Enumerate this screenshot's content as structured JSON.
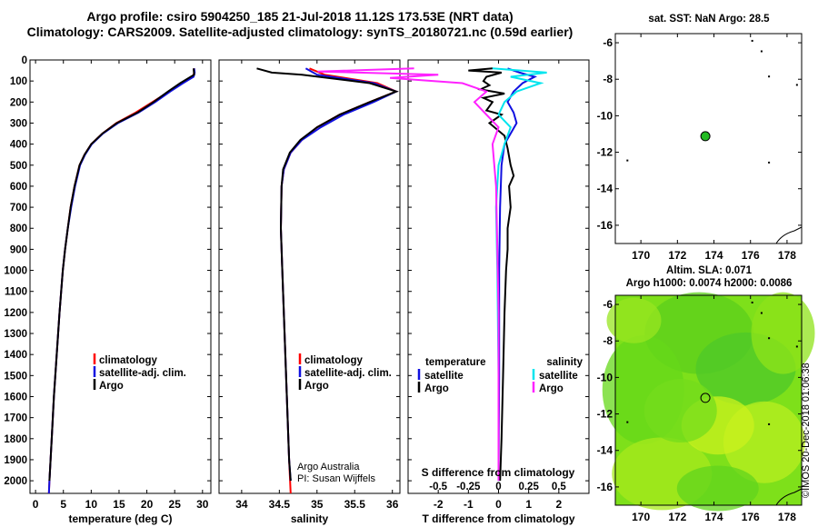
{
  "title_line1": "Argo profile: csiro 5904250_185 21-Jul-2018 11.12S 173.53E (NRT data)",
  "title_line2": "Climatology: CARS2009. Satellite-adjusted climatology: synTS_20180721.nc (0.59d earlier)",
  "copyright": "©IMOS 20-Dec-2018 01:06:38",
  "colors": {
    "climatology": "#ff0000",
    "satellite": "#1010e0",
    "argo": "#000000",
    "satellite_s": "#00e5ee",
    "argo_s": "#ff22ff",
    "map_dot": "#22bb22"
  },
  "chart_data": [
    {
      "type": "line",
      "id": "temperature",
      "xlabel": "temperature (deg C)",
      "ylabel": "",
      "xlim": [
        -1,
        31.5
      ],
      "ylim": [
        2060,
        0
      ],
      "xticks": [
        0,
        5,
        10,
        15,
        20,
        25,
        30
      ],
      "yticks": [
        0,
        100,
        200,
        300,
        400,
        500,
        600,
        700,
        800,
        900,
        1000,
        1100,
        1200,
        1300,
        1400,
        1500,
        1600,
        1700,
        1800,
        1900,
        2000
      ],
      "legend": [
        "climatology",
        "satellite-adj. clim.",
        "Argo"
      ],
      "series": [
        {
          "name": "climatology",
          "points": [
            [
              28.5,
              40
            ],
            [
              28.5,
              60
            ],
            [
              28.3,
              80
            ],
            [
              26.2,
              110
            ],
            [
              24,
              150
            ],
            [
              21,
              200
            ],
            [
              18,
              250
            ],
            [
              14.5,
              300
            ],
            [
              12,
              350
            ],
            [
              10,
              400
            ],
            [
              8.8,
              450
            ],
            [
              7.9,
              500
            ],
            [
              7,
              600
            ],
            [
              6.3,
              700
            ],
            [
              5.8,
              800
            ],
            [
              5.3,
              900
            ],
            [
              4.9,
              1000
            ],
            [
              4.3,
              1200
            ],
            [
              3.8,
              1400
            ],
            [
              3.3,
              1600
            ],
            [
              2.9,
              1800
            ],
            [
              2.5,
              2000
            ],
            [
              2.4,
              2060
            ]
          ]
        },
        {
          "name": "satellite-adj. clim.",
          "points": [
            [
              28.5,
              40
            ],
            [
              28.6,
              60
            ],
            [
              28.4,
              80
            ],
            [
              26.5,
              110
            ],
            [
              24.2,
              150
            ],
            [
              21.5,
              200
            ],
            [
              18.5,
              250
            ],
            [
              14.8,
              300
            ],
            [
              12.1,
              350
            ],
            [
              10.1,
              400
            ],
            [
              8.9,
              450
            ],
            [
              8.0,
              500
            ],
            [
              7.1,
              600
            ],
            [
              6.4,
              700
            ],
            [
              5.8,
              800
            ],
            [
              5.3,
              900
            ],
            [
              4.9,
              1000
            ],
            [
              4.3,
              1200
            ],
            [
              3.8,
              1400
            ],
            [
              3.3,
              1600
            ],
            [
              2.9,
              1800
            ],
            [
              2.5,
              2000
            ],
            [
              2.4,
              2060
            ]
          ]
        },
        {
          "name": "Argo",
          "points": [
            [
              28.4,
              40
            ],
            [
              28.5,
              70
            ],
            [
              26,
              110
            ],
            [
              23.8,
              150
            ],
            [
              21.2,
              200
            ],
            [
              18.3,
              250
            ],
            [
              14.6,
              300
            ],
            [
              12,
              350
            ],
            [
              10,
              400
            ],
            [
              8.8,
              450
            ],
            [
              7.9,
              500
            ],
            [
              7,
              600
            ],
            [
              6.3,
              700
            ],
            [
              5.8,
              800
            ],
            [
              5.3,
              900
            ],
            [
              4.9,
              1000
            ],
            [
              4.3,
              1200
            ],
            [
              3.8,
              1400
            ],
            [
              3.3,
              1600
            ],
            [
              2.9,
              1800
            ],
            [
              2.5,
              2000
            ]
          ]
        }
      ]
    },
    {
      "type": "line",
      "id": "salinity",
      "xlabel": "salinity",
      "xlim": [
        33.7,
        36.1
      ],
      "ylim": [
        2060,
        0
      ],
      "xticks": [
        34,
        34.5,
        35,
        35.5,
        36
      ],
      "xticklabels": [
        "34",
        "34.5",
        "35",
        "35.5",
        "36"
      ],
      "legend": [
        "climatology",
        "satellite-adj. clim.",
        "Argo"
      ],
      "annotation": [
        "Argo Australia",
        "PI: Susan Wijffels"
      ],
      "series": [
        {
          "name": "climatology",
          "points": [
            [
              34.9,
              40
            ],
            [
              35.1,
              70
            ],
            [
              35.8,
              110
            ],
            [
              36.05,
              150
            ],
            [
              35.7,
              200
            ],
            [
              35.3,
              260
            ],
            [
              35.0,
              320
            ],
            [
              34.8,
              380
            ],
            [
              34.65,
              440
            ],
            [
              34.56,
              520
            ],
            [
              34.53,
              600
            ],
            [
              34.52,
              800
            ],
            [
              34.54,
              1000
            ],
            [
              34.57,
              1300
            ],
            [
              34.6,
              1600
            ],
            [
              34.63,
              1900
            ],
            [
              34.65,
              2060
            ]
          ]
        },
        {
          "name": "satellite-adj. clim.",
          "points": [
            [
              34.85,
              40
            ],
            [
              35.0,
              70
            ],
            [
              35.75,
              110
            ],
            [
              36.05,
              150
            ],
            [
              35.75,
              200
            ],
            [
              35.35,
              260
            ],
            [
              35.05,
              320
            ],
            [
              34.8,
              380
            ],
            [
              34.65,
              440
            ],
            [
              34.56,
              520
            ],
            [
              34.53,
              600
            ],
            [
              34.52,
              800
            ],
            [
              34.54,
              1000
            ],
            [
              34.57,
              1300
            ],
            [
              34.6,
              1600
            ],
            [
              34.63,
              1900
            ],
            [
              34.65,
              2000
            ]
          ]
        },
        {
          "name": "Argo",
          "points": [
            [
              34.2,
              40
            ],
            [
              34.4,
              60
            ],
            [
              34.8,
              70
            ],
            [
              35.7,
              110
            ],
            [
              36.05,
              150
            ],
            [
              35.7,
              200
            ],
            [
              35.3,
              260
            ],
            [
              35.0,
              320
            ],
            [
              34.78,
              380
            ],
            [
              34.64,
              440
            ],
            [
              34.55,
              520
            ],
            [
              34.53,
              600
            ],
            [
              34.52,
              800
            ],
            [
              34.54,
              1000
            ],
            [
              34.57,
              1300
            ],
            [
              34.6,
              1600
            ],
            [
              34.63,
              1900
            ],
            [
              34.65,
              2000
            ]
          ]
        }
      ]
    },
    {
      "type": "line",
      "id": "difference",
      "xlabel": "T difference from climatology",
      "xlabel_top": "S difference from climatology",
      "xlim": [
        -3,
        3
      ],
      "ylim": [
        2060,
        0
      ],
      "xticks": [
        -2,
        -1,
        0,
        1,
        2
      ],
      "sticks": [
        -0.5,
        -0.25,
        0,
        0.25,
        0.5
      ],
      "sticklabels": [
        "-0.5",
        "-0.25",
        "0",
        "0.25",
        "0.5"
      ],
      "legend_temperature": {
        "heading": "temperature",
        "items": [
          "satellite",
          "Argo"
        ]
      },
      "legend_salinity": {
        "heading": "salinity",
        "items": [
          "satellite",
          "Argo"
        ]
      },
      "series": [
        {
          "name": "T satellite",
          "points": [
            [
              0.3,
              40
            ],
            [
              0.7,
              60
            ],
            [
              1.2,
              80
            ],
            [
              0.8,
              110
            ],
            [
              0.5,
              150
            ],
            [
              0.3,
              200
            ],
            [
              0.5,
              250
            ],
            [
              0.6,
              300
            ],
            [
              0.4,
              350
            ],
            [
              0.2,
              400
            ],
            [
              0.1,
              500
            ],
            [
              0.05,
              700
            ],
            [
              0.02,
              1000
            ],
            [
              0.02,
              1500
            ],
            [
              0.0,
              2000
            ]
          ]
        },
        {
          "name": "T Argo",
          "points": [
            [
              -0.2,
              40
            ],
            [
              -1.0,
              50
            ],
            [
              0.1,
              60
            ],
            [
              -0.4,
              80
            ],
            [
              -0.5,
              100
            ],
            [
              -0.3,
              120
            ],
            [
              -0.6,
              140
            ],
            [
              0.2,
              160
            ],
            [
              -0.5,
              180
            ],
            [
              -0.2,
              200
            ],
            [
              -0.4,
              240
            ],
            [
              0.1,
              260
            ],
            [
              -0.3,
              300
            ],
            [
              0.2,
              360
            ],
            [
              0.3,
              420
            ],
            [
              0.4,
              500
            ],
            [
              0.5,
              550
            ],
            [
              0.35,
              600
            ],
            [
              0.4,
              700
            ],
            [
              0.3,
              800
            ],
            [
              0.3,
              900
            ],
            [
              0.25,
              1000
            ],
            [
              0.2,
              1200
            ],
            [
              0.15,
              1500
            ],
            [
              0.1,
              1800
            ],
            [
              0.05,
              2000
            ]
          ]
        },
        {
          "name": "S satellite",
          "points": [
            [
              -0.05,
              40
            ],
            [
              0.4,
              60
            ],
            [
              0.1,
              80
            ],
            [
              0.35,
              110
            ],
            [
              0.15,
              150
            ],
            [
              0.05,
              200
            ],
            [
              0.0,
              260
            ],
            [
              0.1,
              320
            ],
            [
              0.05,
              400
            ],
            [
              0.0,
              500
            ],
            [
              -0.02,
              700
            ],
            [
              -0.01,
              1000
            ],
            [
              0.0,
              1500
            ],
            [
              0.0,
              2000
            ]
          ]
        },
        {
          "name": "S Argo",
          "points": [
            [
              -0.7,
              40
            ],
            [
              -1.5,
              55
            ],
            [
              -0.5,
              70
            ],
            [
              -0.9,
              85
            ],
            [
              -0.3,
              110
            ],
            [
              -0.1,
              150
            ],
            [
              -0.2,
              200
            ],
            [
              -0.1,
              260
            ],
            [
              0.0,
              320
            ],
            [
              -0.05,
              400
            ],
            [
              -0.02,
              600
            ],
            [
              -0.01,
              900
            ],
            [
              0.0,
              1200
            ],
            [
              0.0,
              1600
            ],
            [
              0.0,
              2000
            ]
          ]
        }
      ]
    },
    {
      "type": "map",
      "id": "sst",
      "title": "sat. SST: NaN Argo: 28.5",
      "xlim": [
        168.6,
        178.8
      ],
      "ylim": [
        -17,
        -5.5
      ],
      "xticks": [
        170,
        172,
        174,
        176,
        178
      ],
      "yticks": [
        -6,
        -8,
        -10,
        -12,
        -14,
        -16
      ],
      "argo_position": [
        173.53,
        -11.12
      ]
    },
    {
      "type": "heatmap",
      "id": "sla",
      "title": "Altim. SLA: 0.071",
      "subtitle": "Argo h1000: 0.0074 h2000: 0.0086",
      "xlim": [
        168.6,
        178.8
      ],
      "ylim": [
        -17,
        -5.5
      ],
      "xticks": [
        170,
        172,
        174,
        176,
        178
      ],
      "yticks": [
        -6,
        -8,
        -10,
        -12,
        -14,
        -16
      ],
      "argo_position": [
        173.53,
        -11.12
      ]
    }
  ]
}
